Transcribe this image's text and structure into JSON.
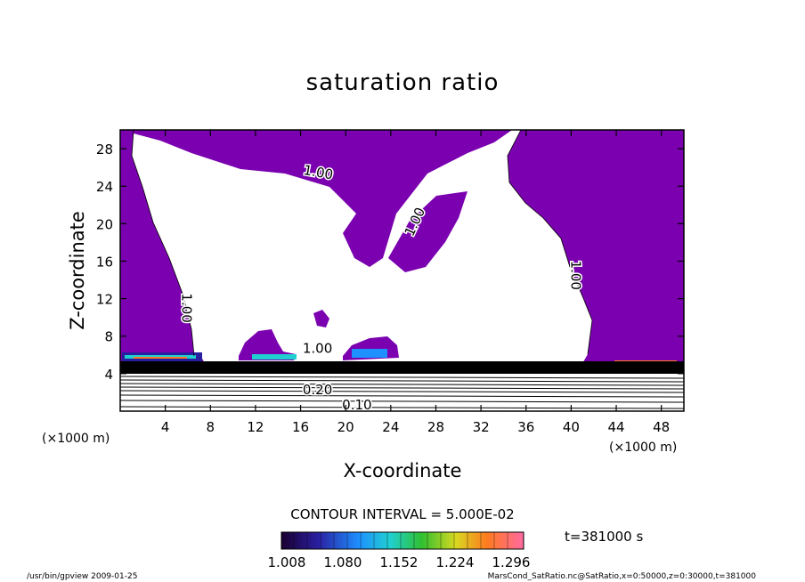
{
  "chart_data": {
    "type": "heatmap",
    "title": "saturation ratio",
    "xlabel": "X-coordinate",
    "ylabel": "Z-coordinate",
    "x_unit_label": "(×1000 m)",
    "y_unit_label": "(×1000 m)",
    "xlim": [
      0,
      50
    ],
    "ylim": [
      0,
      30
    ],
    "x_ticks": [
      4,
      8,
      12,
      16,
      20,
      24,
      28,
      32,
      36,
      40,
      44,
      48
    ],
    "y_ticks": [
      4,
      8,
      12,
      16,
      20,
      24,
      28
    ],
    "contour_interval": "CONTOUR INTERVAL = 5.000E-02",
    "contour_labels": [
      {
        "text": "1.00",
        "x": 17.5,
        "y": 25.0,
        "rotate": 10
      },
      {
        "text": "1.00",
        "x": 26.5,
        "y": 20.0,
        "rotate": -65
      },
      {
        "text": "1.00",
        "x": 40.0,
        "y": 14.5,
        "rotate": 90
      },
      {
        "text": "1.00",
        "x": 5.5,
        "y": 11.0,
        "rotate": 90
      },
      {
        "text": "1.00",
        "x": 17.5,
        "y": 6.2,
        "rotate": 0
      },
      {
        "text": "0.20",
        "x": 17.5,
        "y": 1.8,
        "rotate": 0
      },
      {
        "text": "0.10",
        "x": 21.0,
        "y": 0.2,
        "rotate": 0
      }
    ],
    "colorbar": {
      "ticks": [
        "1.008",
        "1.080",
        "1.152",
        "1.224",
        "1.296"
      ],
      "range": [
        1.008,
        1.33
      ]
    },
    "time_label": "t=381000 s",
    "colors": {
      "supersaturated": "#7a00b0",
      "axis": "#000000"
    }
  },
  "footer": {
    "left": "/usr/bin/gpview  2009-01-25",
    "right": "MarsCond_SatRatio.nc@SatRatio,x=0:50000,z=0:30000,t=381000"
  }
}
